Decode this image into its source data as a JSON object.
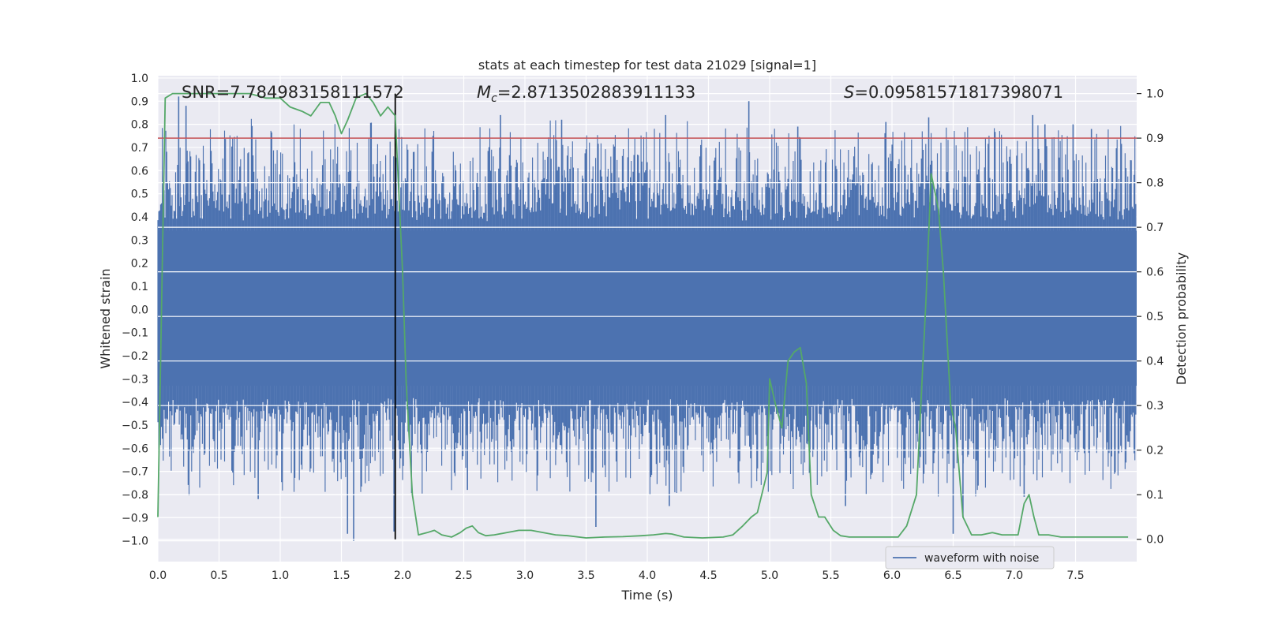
{
  "chart_data": {
    "type": "line",
    "title": "stats at each timestep for test data 21029 [signal=1]",
    "xlabel": "Time (s)",
    "ylabel_left": "Whitened strain",
    "ylabel_right": "Detection probability",
    "xlim": [
      0,
      8
    ],
    "ylim_left": [
      -1.09,
      1.01
    ],
    "ylim_right": [
      -0.05,
      1.04
    ],
    "x_ticks": [
      0.0,
      0.5,
      1.0,
      1.5,
      2.0,
      2.5,
      3.0,
      3.5,
      4.0,
      4.5,
      5.0,
      5.5,
      6.0,
      6.5,
      7.0,
      7.5
    ],
    "x_tick_labels": [
      "0.0",
      "0.5",
      "1.0",
      "1.5",
      "2.0",
      "2.5",
      "3.0",
      "3.5",
      "4.0",
      "4.5",
      "5.0",
      "5.5",
      "6.0",
      "6.5",
      "7.0",
      "7.5"
    ],
    "y_left_ticks": [
      1.0,
      0.9,
      0.8,
      0.7,
      0.6,
      0.5,
      0.4,
      0.3,
      0.2,
      0.1,
      0.0,
      -0.1,
      -0.2,
      -0.3,
      -0.4,
      -0.5,
      -0.6,
      -0.7,
      -0.8,
      -0.9,
      -1.0
    ],
    "y_left_tick_labels": [
      "1.0",
      "0.9",
      "0.8",
      "0.7",
      "0.6",
      "0.5",
      "0.4",
      "0.3",
      "0.2",
      "0.1",
      "0.0",
      "−0.1",
      "−0.2",
      "−0.3",
      "−0.4",
      "−0.5",
      "−0.6",
      "−0.7",
      "−0.8",
      "−0.9",
      "−1.0"
    ],
    "y_right_ticks": [
      1.0,
      0.9,
      0.8,
      0.7,
      0.6,
      0.5,
      0.4,
      0.3,
      0.2,
      0.1,
      0.0
    ],
    "y_right_tick_labels": [
      "1.0",
      "0.9",
      "0.8",
      "0.7",
      "0.6",
      "0.5",
      "0.4",
      "0.3",
      "0.2",
      "0.1",
      "0.0"
    ],
    "annotations": {
      "snr": "SNR=7.784983158111572",
      "mc_symbol": "M",
      "mc_sub": "c",
      "mc_value": "=2.8713502883911133",
      "s_symbol": "S",
      "s_value": "=0.09581571817398071"
    },
    "threshold": {
      "axis": "right",
      "value": 0.9,
      "color": "#c44e52"
    },
    "marker": {
      "x": 1.94,
      "color": "#000000"
    },
    "series": [
      {
        "name": "waveform with noise",
        "axis": "left",
        "color": "#4c72b0",
        "description": "dense noisy whitened strain; core band about -0.4 to 0.4 with spikes",
        "spikes": [
          {
            "x": 0.17,
            "y": 0.92
          },
          {
            "x": 0.23,
            "y": 0.88
          },
          {
            "x": 1.55,
            "y": -0.97
          },
          {
            "x": 1.6,
            "y": -1.0
          },
          {
            "x": 0.82,
            "y": -0.82
          },
          {
            "x": 2.8,
            "y": 0.84
          },
          {
            "x": 3.58,
            "y": -0.94
          },
          {
            "x": 4.15,
            "y": 0.84
          },
          {
            "x": 4.18,
            "y": -0.85
          },
          {
            "x": 4.83,
            "y": 0.9
          },
          {
            "x": 5.23,
            "y": 0.79
          },
          {
            "x": 6.3,
            "y": 0.83
          },
          {
            "x": 5.95,
            "y": 0.81
          },
          {
            "x": 7.08,
            "y": -0.81
          },
          {
            "x": 7.25,
            "y": 0.8
          },
          {
            "x": 7.48,
            "y": 0.8
          },
          {
            "x": 7.63,
            "y": 0.78
          },
          {
            "x": 7.15,
            "y": 0.84
          },
          {
            "x": 3.3,
            "y": 0.82
          },
          {
            "x": 2.53,
            "y": -0.78
          },
          {
            "x": 5.62,
            "y": -0.85
          },
          {
            "x": 6.58,
            "y": -0.9
          },
          {
            "x": 6.5,
            "y": -0.97
          },
          {
            "x": 1.93,
            "y": -0.96
          }
        ]
      },
      {
        "name": "detection probability",
        "axis": "right",
        "color": "#55a868",
        "x": [
          0.0,
          0.06,
          0.12,
          0.25,
          0.5,
          0.75,
          0.88,
          1.0,
          1.08,
          1.18,
          1.25,
          1.33,
          1.4,
          1.45,
          1.5,
          1.55,
          1.62,
          1.7,
          1.76,
          1.82,
          1.88,
          1.94,
          2.0,
          2.03,
          2.08,
          2.13,
          2.2,
          2.26,
          2.32,
          2.4,
          2.47,
          2.52,
          2.57,
          2.62,
          2.68,
          2.75,
          2.85,
          2.95,
          3.05,
          3.15,
          3.25,
          3.35,
          3.5,
          3.65,
          3.8,
          3.95,
          4.05,
          4.15,
          4.2,
          4.3,
          4.45,
          4.62,
          4.7,
          4.78,
          4.85,
          4.9,
          4.98,
          5.0,
          5.05,
          5.1,
          5.15,
          5.2,
          5.25,
          5.3,
          5.34,
          5.4,
          5.45,
          5.52,
          5.58,
          5.65,
          5.8,
          5.95,
          6.05,
          6.12,
          6.2,
          6.28,
          6.32,
          6.38,
          6.42,
          6.48,
          6.52,
          6.58,
          6.65,
          6.73,
          6.82,
          6.9,
          6.97,
          7.03,
          7.08,
          7.12,
          7.16,
          7.2,
          7.28,
          7.38,
          7.5,
          7.6,
          7.75,
          7.85,
          7.93
        ],
        "y": [
          0.05,
          0.99,
          1.0,
          1.0,
          1.0,
          1.0,
          0.99,
          0.99,
          0.97,
          0.96,
          0.95,
          0.98,
          0.98,
          0.95,
          0.91,
          0.94,
          0.99,
          1.0,
          0.98,
          0.95,
          0.97,
          0.95,
          0.6,
          0.35,
          0.1,
          0.01,
          0.015,
          0.02,
          0.01,
          0.005,
          0.015,
          0.025,
          0.03,
          0.015,
          0.008,
          0.01,
          0.015,
          0.02,
          0.02,
          0.015,
          0.01,
          0.008,
          0.003,
          0.005,
          0.006,
          0.008,
          0.01,
          0.013,
          0.012,
          0.005,
          0.003,
          0.005,
          0.01,
          0.03,
          0.05,
          0.06,
          0.15,
          0.36,
          0.3,
          0.25,
          0.4,
          0.42,
          0.43,
          0.35,
          0.1,
          0.05,
          0.05,
          0.02,
          0.008,
          0.005,
          0.005,
          0.005,
          0.005,
          0.03,
          0.1,
          0.55,
          0.82,
          0.74,
          0.6,
          0.3,
          0.25,
          0.05,
          0.01,
          0.01,
          0.015,
          0.01,
          0.01,
          0.01,
          0.08,
          0.1,
          0.05,
          0.01,
          0.01,
          0.005,
          0.005,
          0.005,
          0.005,
          0.005,
          0.005
        ]
      }
    ],
    "legend": {
      "entries": [
        "waveform with noise"
      ],
      "position": "lower-right"
    }
  }
}
